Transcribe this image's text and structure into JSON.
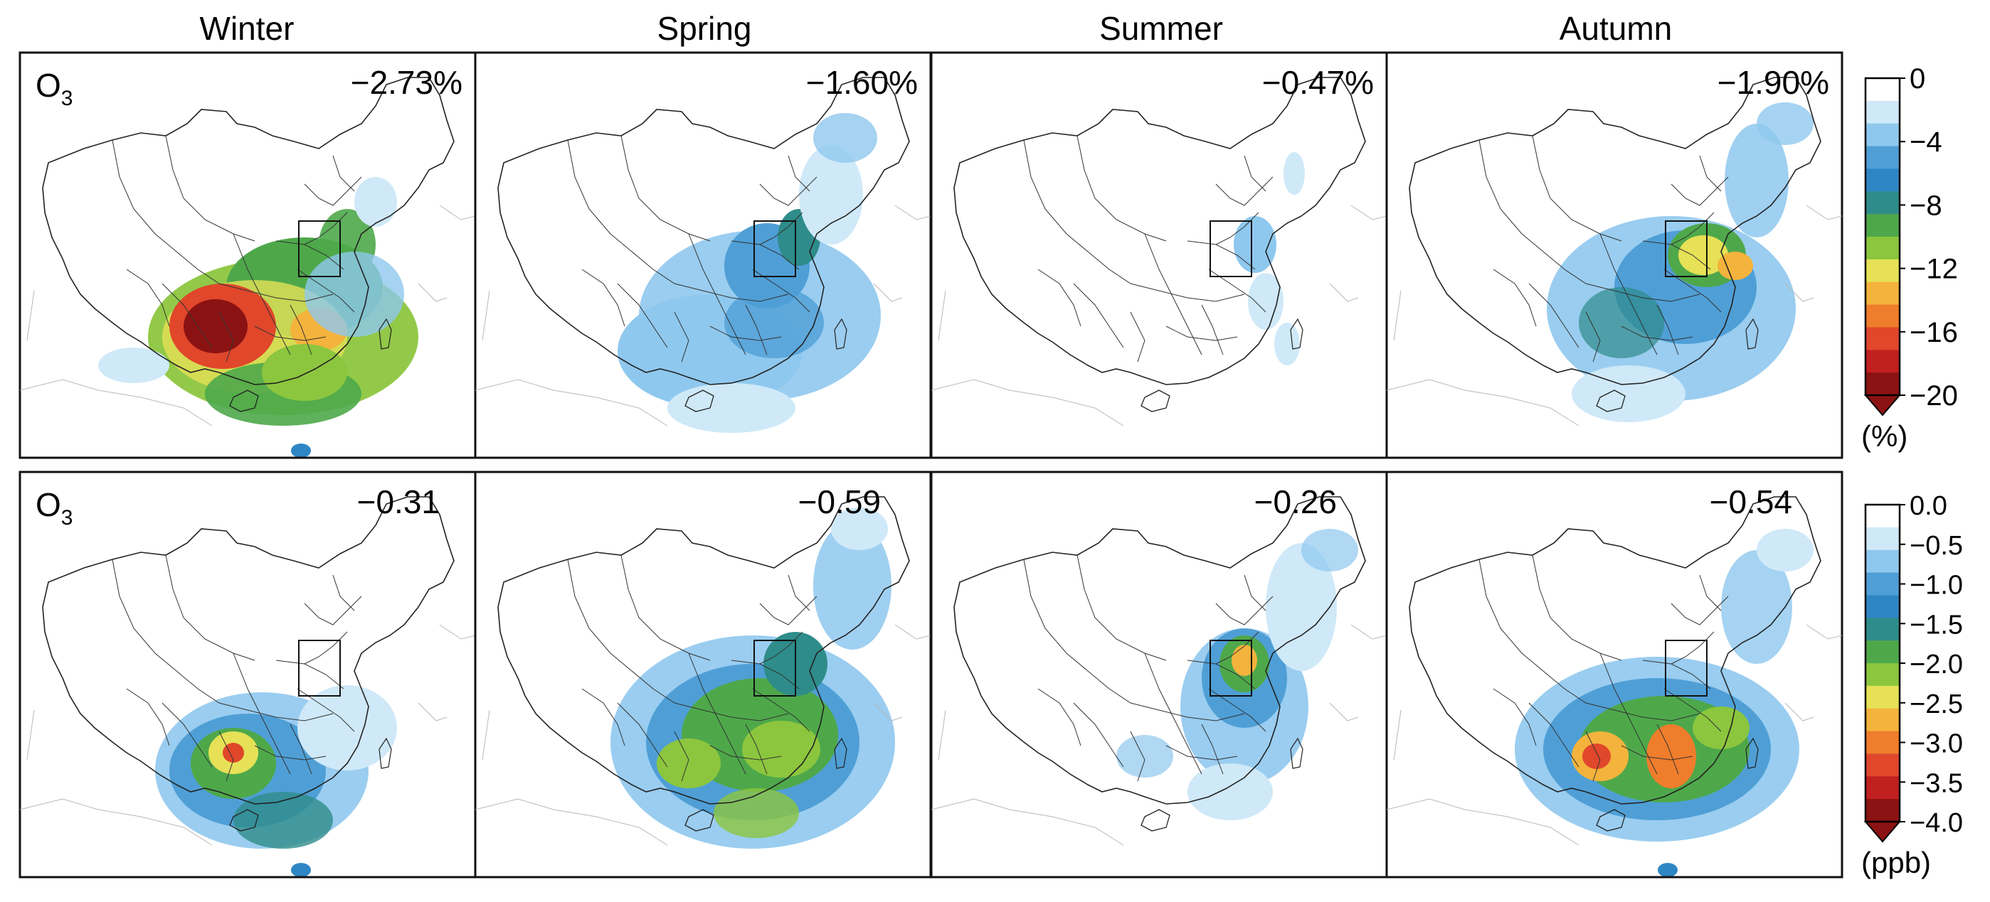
{
  "seasons": [
    "Winter",
    "Spring",
    "Summer",
    "Autumn"
  ],
  "rows": [
    {
      "species_main": "O",
      "species_sub": "3",
      "values": [
        "−2.73%",
        "−1.60%",
        "−0.47%",
        "−1.90%"
      ],
      "colorbar": {
        "ticks": [
          "0",
          "−4",
          "−8",
          "−12",
          "−16",
          "−20"
        ],
        "unit": "(%)",
        "min": -20,
        "max": 0
      }
    },
    {
      "species_main": "O",
      "species_sub": "3",
      "values": [
        "−0.31",
        "−0.59",
        "−0.26",
        "−0.54"
      ],
      "colorbar": {
        "ticks": [
          "0.0",
          "−0.5",
          "−1.0",
          "−1.5",
          "−2.0",
          "−2.5",
          "−3.0",
          "−3.5",
          "−4.0"
        ],
        "unit": "(ppb)",
        "min": -4.0,
        "max": 0.0
      }
    }
  ],
  "palette": [
    "#ffffff",
    "#cfe9f8",
    "#8fc8ee",
    "#4f9fd6",
    "#2f86c4",
    "#2e8c8a",
    "#4ea84a",
    "#8cc63e",
    "#e6e156",
    "#f4b33c",
    "#ef7d2c",
    "#e0472b",
    "#c0201f",
    "#8b1212"
  ],
  "map_colors": {
    "border": "#222222",
    "box": "#111111",
    "neighbor": "#b8b8b8"
  }
}
